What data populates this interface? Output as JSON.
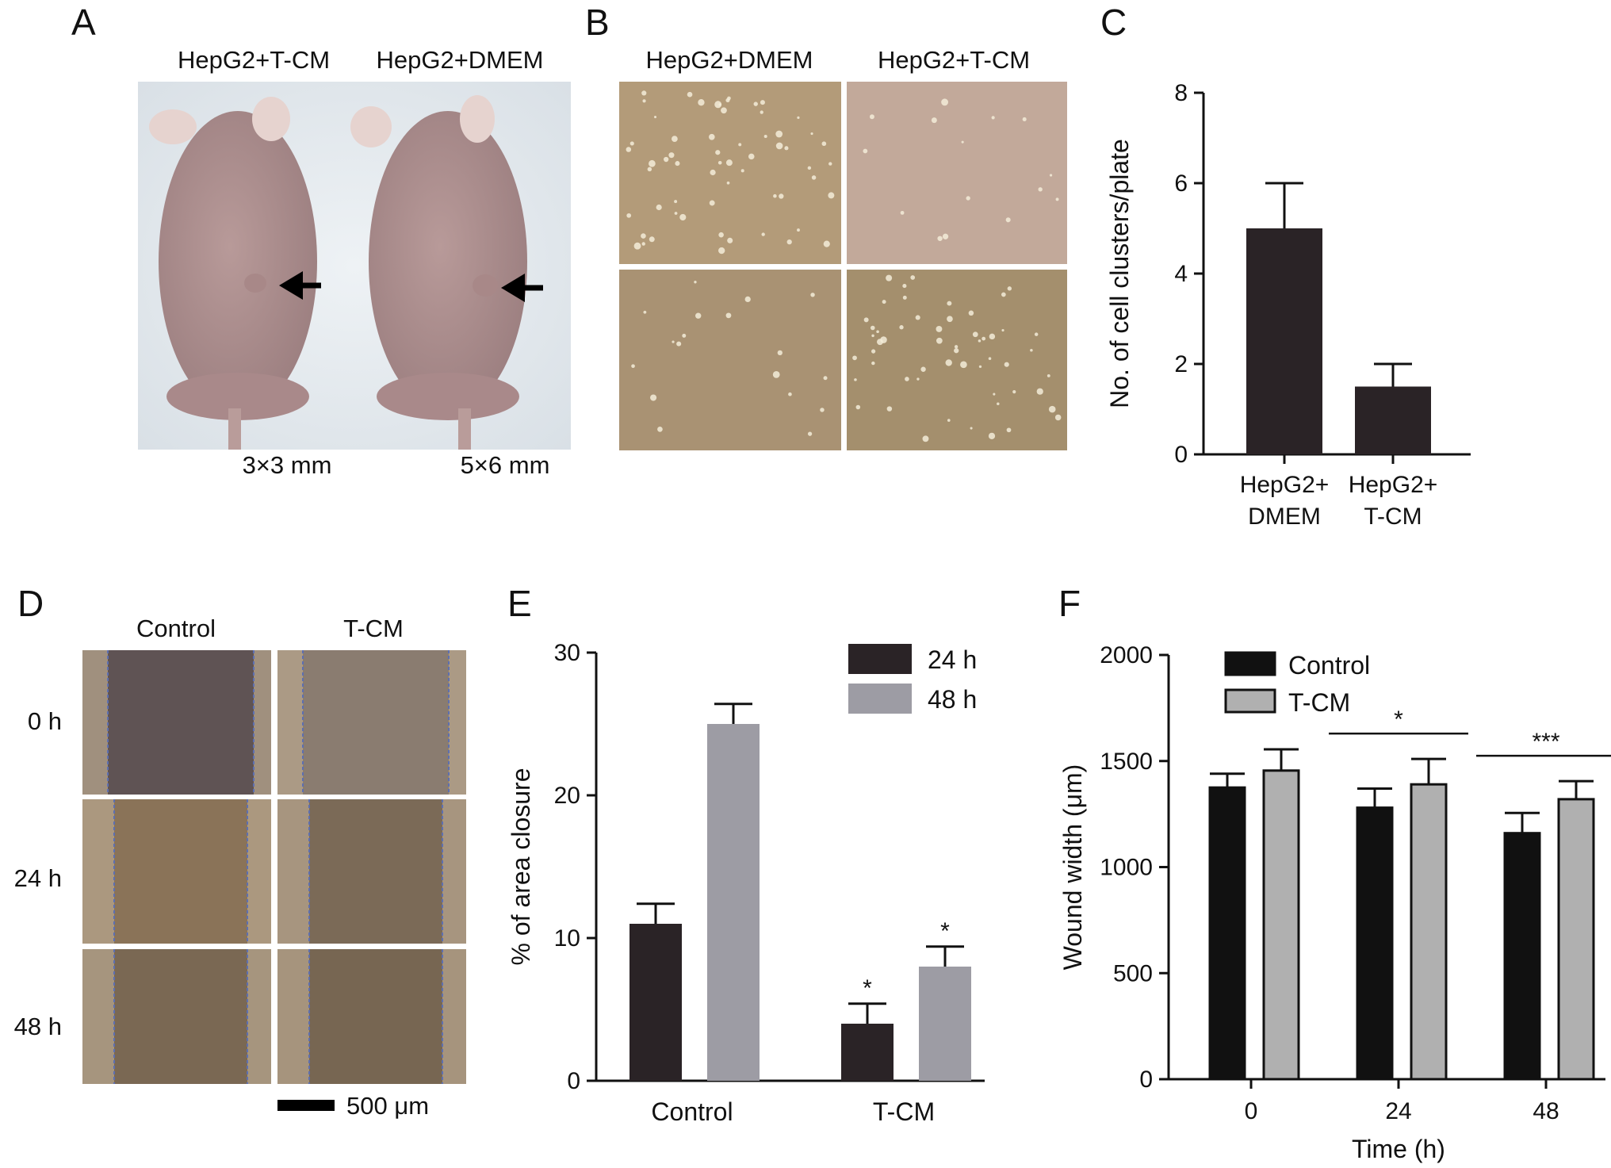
{
  "panels": {
    "A": {
      "letter": "A",
      "columns": [
        "HepG2+T-CM",
        "HepG2+DMEM"
      ],
      "sizes": [
        "3×3 mm",
        "5×6 mm"
      ]
    },
    "B": {
      "letter": "B",
      "columns": [
        "HepG2+DMEM",
        "HepG2+T-CM"
      ]
    },
    "C": {
      "letter": "C"
    },
    "D": {
      "letter": "D",
      "columns": [
        "Control",
        "T-CM"
      ],
      "rows": [
        "0 h",
        "24 h",
        "48 h"
      ],
      "scale_bar": "500 μm"
    },
    "E": {
      "letter": "E"
    },
    "F": {
      "letter": "F"
    }
  },
  "colors": {
    "dark_bar": "#2a2326",
    "grey_bar": "#9d9ca4",
    "black_bar": "#111111",
    "light_grey_bar": "#b0b0b0",
    "photo_bg_A": "#e5eaee",
    "mouse_skin": "#b09392",
    "colony_bg": "#a48f6d",
    "wound_bg": "#857560"
  },
  "chart_data": [
    {
      "panel": "C",
      "type": "bar",
      "categories": [
        "HepG2+ DMEM",
        "HepG2+ T-CM"
      ],
      "category_lines": [
        [
          "HepG2+",
          "DMEM"
        ],
        [
          "HepG2+",
          "T-CM"
        ]
      ],
      "values": [
        5.0,
        1.5
      ],
      "errors": [
        1.0,
        0.5
      ],
      "ylabel": "No. of cell clusters/plate",
      "ylim": [
        0,
        8
      ],
      "yticks": [
        0,
        2,
        4,
        6,
        8
      ]
    },
    {
      "panel": "E",
      "type": "bar",
      "categories": [
        "Control",
        "T-CM"
      ],
      "series": [
        {
          "name": "24 h",
          "values": [
            11.0,
            4.0
          ],
          "errors": [
            1.4,
            1.4
          ],
          "markers": [
            "",
            "*"
          ]
        },
        {
          "name": "48 h",
          "values": [
            25.0,
            8.0
          ],
          "errors": [
            1.4,
            1.4
          ],
          "markers": [
            "",
            "*"
          ]
        }
      ],
      "ylabel": "% of area closure",
      "ylim": [
        0,
        30
      ],
      "yticks": [
        0,
        10,
        20,
        30
      ],
      "legend": "top-right"
    },
    {
      "panel": "F",
      "type": "bar",
      "categories": [
        "0",
        "24",
        "48"
      ],
      "series": [
        {
          "name": "Control",
          "values": [
            1375,
            1280,
            1160
          ],
          "errors": [
            65,
            90,
            95
          ]
        },
        {
          "name": "T-CM",
          "values": [
            1455,
            1390,
            1320
          ],
          "errors": [
            100,
            120,
            85
          ]
        }
      ],
      "significance": [
        "",
        "*",
        "***"
      ],
      "xlabel": "Time (h)",
      "ylabel": "Wound width (μm)",
      "ylim": [
        0,
        2000
      ],
      "yticks": [
        0,
        500,
        1000,
        1500,
        2000
      ],
      "legend": "top-left"
    }
  ]
}
